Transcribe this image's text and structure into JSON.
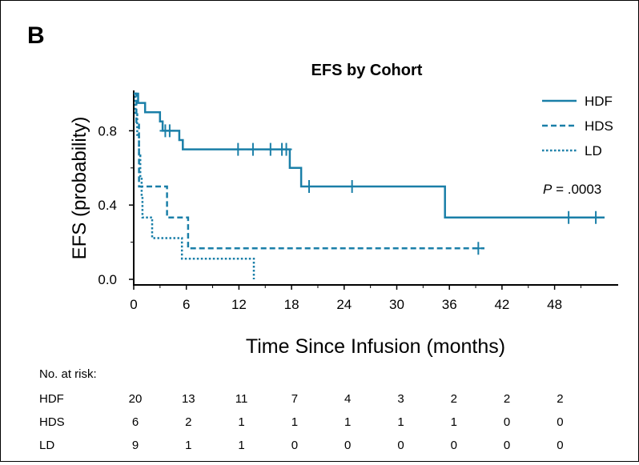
{
  "panel_label": "B",
  "chart_data": {
    "type": "line",
    "step": true,
    "title": "EFS by Cohort",
    "xlabel": "Time Since Infusion (months)",
    "ylabel": "EFS (probability)",
    "xlim": [
      0,
      54
    ],
    "ylim": [
      0,
      1
    ],
    "x_ticks": [
      0,
      6,
      12,
      18,
      24,
      30,
      36,
      42,
      48
    ],
    "y_ticks": [
      0.0,
      0.4,
      0.8
    ],
    "y_tick_labels": [
      "0.0",
      "0.4",
      "0.8"
    ],
    "legend_position": "top-right",
    "annotation": {
      "p_symbol": "P",
      "p_value": " = .0003"
    },
    "colors": {
      "line": "#1a7fa8",
      "axis": "#000000"
    },
    "series": [
      {
        "name": "HDF",
        "style": "solid",
        "points": [
          [
            0,
            1.0
          ],
          [
            0.5,
            1.0
          ],
          [
            0.5,
            0.95
          ],
          [
            1.3,
            0.95
          ],
          [
            1.3,
            0.9
          ],
          [
            3.0,
            0.9
          ],
          [
            3.0,
            0.85
          ],
          [
            3.3,
            0.85
          ],
          [
            3.3,
            0.8
          ],
          [
            5.2,
            0.8
          ],
          [
            5.2,
            0.75
          ],
          [
            5.6,
            0.75
          ],
          [
            5.6,
            0.7
          ],
          [
            17.8,
            0.7
          ],
          [
            17.8,
            0.6
          ],
          [
            19.1,
            0.6
          ],
          [
            19.1,
            0.5
          ],
          [
            35.5,
            0.5
          ],
          [
            35.5,
            0.333
          ],
          [
            53.7,
            0.333
          ]
        ],
        "censored": [
          [
            3.6,
            0.8
          ],
          [
            4.1,
            0.8
          ],
          [
            11.9,
            0.7
          ],
          [
            13.6,
            0.7
          ],
          [
            15.6,
            0.7
          ],
          [
            16.9,
            0.7
          ],
          [
            17.4,
            0.7
          ],
          [
            20.0,
            0.5
          ],
          [
            24.9,
            0.5
          ],
          [
            49.6,
            0.333
          ],
          [
            52.7,
            0.333
          ]
        ]
      },
      {
        "name": "HDS",
        "style": "dashed",
        "points": [
          [
            0,
            1.0
          ],
          [
            0.3,
            1.0
          ],
          [
            0.3,
            0.833
          ],
          [
            0.6,
            0.833
          ],
          [
            0.6,
            0.5
          ],
          [
            3.8,
            0.5
          ],
          [
            3.8,
            0.333
          ],
          [
            6.2,
            0.333
          ],
          [
            6.2,
            0.167
          ],
          [
            40.0,
            0.167
          ]
        ],
        "censored": [
          [
            39.3,
            0.167
          ]
        ]
      },
      {
        "name": "LD",
        "style": "dotted",
        "points": [
          [
            0,
            1.0
          ],
          [
            0.2,
            1.0
          ],
          [
            0.2,
            0.889
          ],
          [
            0.4,
            0.889
          ],
          [
            0.4,
            0.778
          ],
          [
            0.6,
            0.778
          ],
          [
            0.6,
            0.667
          ],
          [
            0.75,
            0.667
          ],
          [
            0.75,
            0.556
          ],
          [
            0.9,
            0.556
          ],
          [
            0.9,
            0.444
          ],
          [
            1.0,
            0.444
          ],
          [
            1.0,
            0.333
          ],
          [
            2.1,
            0.333
          ],
          [
            2.1,
            0.222
          ],
          [
            5.5,
            0.222
          ],
          [
            5.5,
            0.111
          ],
          [
            13.7,
            0.111
          ],
          [
            13.7,
            0.0
          ]
        ],
        "censored": []
      }
    ],
    "risk_table": {
      "title": "No. at risk:",
      "rows": [
        {
          "label": "HDF",
          "values": [
            "20",
            "13",
            "11",
            "7",
            "4",
            "3",
            "2",
            "2",
            "2"
          ]
        },
        {
          "label": "HDS",
          "values": [
            "6",
            "2",
            "1",
            "1",
            "1",
            "1",
            "1",
            "0",
            "0"
          ]
        },
        {
          "label": "LD",
          "values": [
            "9",
            "1",
            "1",
            "0",
            "0",
            "0",
            "0",
            "0",
            "0"
          ]
        }
      ]
    }
  }
}
